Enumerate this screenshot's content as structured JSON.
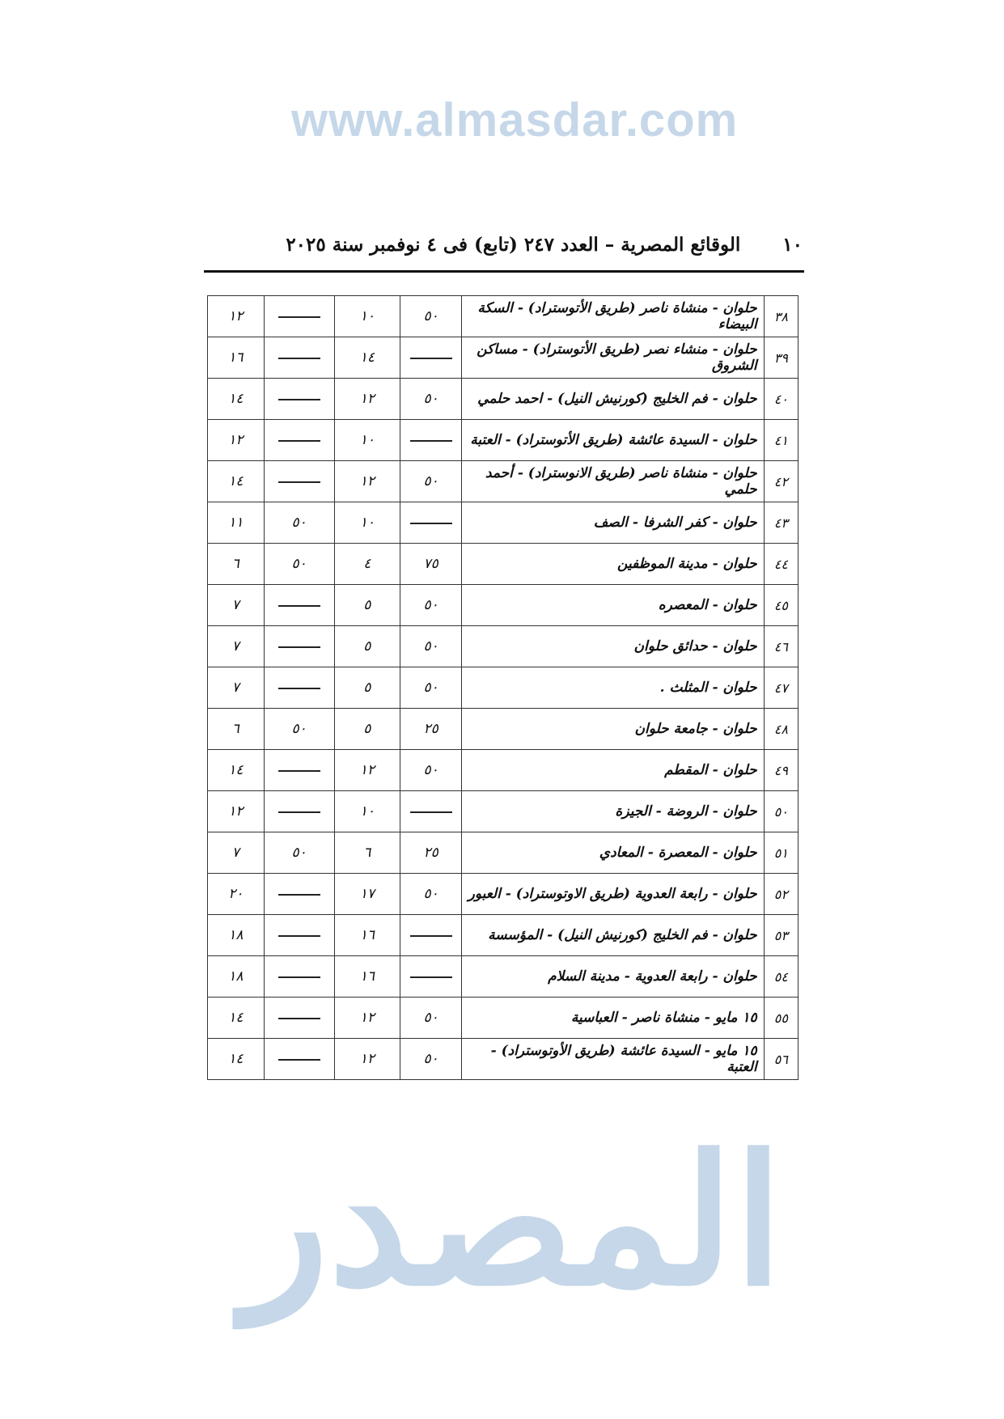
{
  "header": {
    "page_number": "١٠",
    "title": "الوقائع المصرية – العدد ٢٤٧ (تابع) فى ٤ نوفمبر سنة ٢٠٢٥"
  },
  "watermark": {
    "logo_text": "المصدر",
    "url": "www.almasdar.com"
  },
  "table": {
    "rows": [
      {
        "n": "٣٨",
        "route": "حلوان - منشاة ناصر (طريق الأتوستراد) - السكة البيضاء",
        "c1": "٥٠",
        "c2": "١٠",
        "c3": "—",
        "c4": "١٢"
      },
      {
        "n": "٣٩",
        "route": "حلوان - منشاء نصر (طريق الأتوستراد) - مساكن الشروق",
        "c1": "—",
        "c2": "١٤",
        "c3": "—",
        "c4": "١٦"
      },
      {
        "n": "٤٠",
        "route": "حلوان - فم الخليج (كورنيش النيل) - احمد حلمي",
        "c1": "٥٠",
        "c2": "١٢",
        "c3": "—",
        "c4": "١٤"
      },
      {
        "n": "٤١",
        "route": "حلوان - السيدة عائشة (طريق الأتوستراد) - العتبة",
        "c1": "—",
        "c2": "١٠",
        "c3": "—",
        "c4": "١٢"
      },
      {
        "n": "٤٢",
        "route": "حلوان - منشاة ناصر (طريق الانوستراد) - أحمد حلمي",
        "c1": "٥٠",
        "c2": "١٢",
        "c3": "—",
        "c4": "١٤"
      },
      {
        "n": "٤٣",
        "route": "حلوان - كفر الشرفا - الصف",
        "c1": "—",
        "c2": "١٠",
        "c3": "٥٠",
        "c4": "١١"
      },
      {
        "n": "٤٤",
        "route": "حلوان - مدينة الموظفين",
        "c1": "٧٥",
        "c2": "٤",
        "c3": "٥٠",
        "c4": "٦"
      },
      {
        "n": "٤٥",
        "route": "حلوان - المعصره",
        "c1": "٥٠",
        "c2": "٥",
        "c3": "—",
        "c4": "٧"
      },
      {
        "n": "٤٦",
        "route": "حلوان - حدائق حلوان",
        "c1": "٥٠",
        "c2": "٥",
        "c3": "—",
        "c4": "٧"
      },
      {
        "n": "٤٧",
        "route": "حلوان - المثلث .",
        "c1": "٥٠",
        "c2": "٥",
        "c3": "—",
        "c4": "٧"
      },
      {
        "n": "٤٨",
        "route": "حلوان - جامعة حلوان",
        "c1": "٢٥",
        "c2": "٥",
        "c3": "٥٠",
        "c4": "٦"
      },
      {
        "n": "٤٩",
        "route": "حلوان - المقطم",
        "c1": "٥٠",
        "c2": "١٢",
        "c3": "—",
        "c4": "١٤"
      },
      {
        "n": "٥٠",
        "route": "حلوان - الروضة - الجيزة",
        "c1": "—",
        "c2": "١٠",
        "c3": "—",
        "c4": "١٢"
      },
      {
        "n": "٥١",
        "route": "حلوان - المعصرة - المعادي",
        "c1": "٢٥",
        "c2": "٦",
        "c3": "٥٠",
        "c4": "٧"
      },
      {
        "n": "٥٢",
        "route": "حلوان - رابعة العدوية (طريق الاوتوستراد) - العبور",
        "c1": "٥٠",
        "c2": "١٧",
        "c3": "—",
        "c4": "٢٠"
      },
      {
        "n": "٥٣",
        "route": "حلوان - فم الخليج (كورنيش النيل) - المؤسسة",
        "c1": "—",
        "c2": "١٦",
        "c3": "—",
        "c4": "١٨"
      },
      {
        "n": "٥٤",
        "route": "حلوان - رابعة العدوية - مدينة السلام",
        "c1": "—",
        "c2": "١٦",
        "c3": "—",
        "c4": "١٨"
      },
      {
        "n": "٥٥",
        "route": "١٥ مايو - منشاة ناصر - العباسية",
        "c1": "٥٠",
        "c2": "١٢",
        "c3": "—",
        "c4": "١٤"
      },
      {
        "n": "٥٦",
        "route": "١٥ مايو - السيدة عائشة (طريق الأوتوستراد) - العتبة",
        "c1": "٥٠",
        "c2": "١٢",
        "c3": "—",
        "c4": "١٤"
      }
    ]
  }
}
